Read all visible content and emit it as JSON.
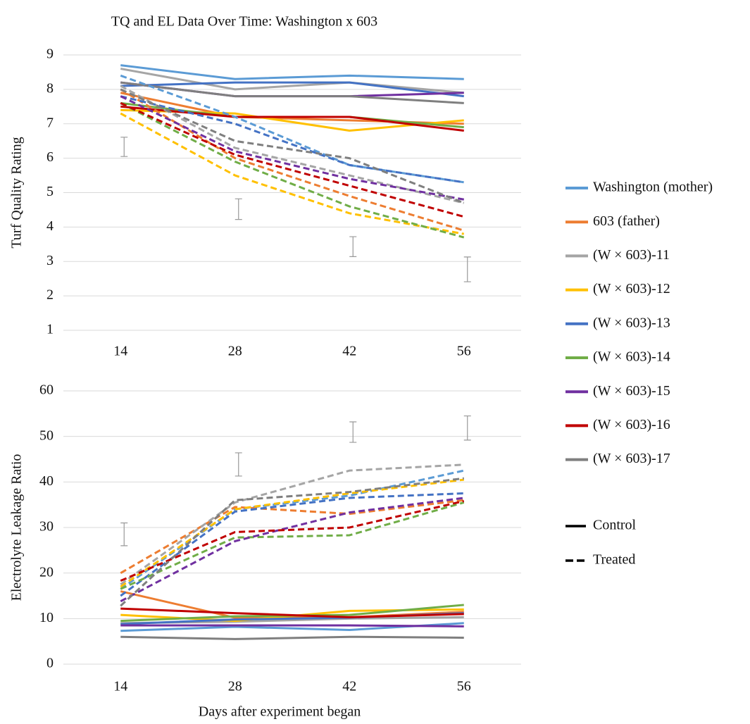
{
  "title": "TQ and EL Data Over Time:  Washington x 603",
  "x_label": "Days after experiment began",
  "legend": {
    "entries": [
      {
        "name": "Washington (mother)",
        "color": "#5b9bd5"
      },
      {
        "name": "603 (father)",
        "color": "#ed7d31"
      },
      {
        "name": "(W × 603)-11",
        "color": "#a5a5a5"
      },
      {
        "name": "(W × 603)-12",
        "color": "#ffc000"
      },
      {
        "name": "(W × 603)-13",
        "color": "#4472c4"
      },
      {
        "name": "(W × 603)-14",
        "color": "#70ad47"
      },
      {
        "name": "(W × 603)-15",
        "color": "#7030a0"
      },
      {
        "name": "(W × 603)-16",
        "color": "#c00000"
      },
      {
        "name": "(W × 603)-17",
        "color": "#7f7f7f"
      }
    ],
    "styles": [
      {
        "label": "Control",
        "dashed": false
      },
      {
        "label": "Treated",
        "dashed": true
      }
    ]
  },
  "chart_data": [
    {
      "type": "line",
      "y_label": "Turf Quality Rating",
      "categories": [
        14,
        28,
        42,
        56
      ],
      "ylim": [
        1,
        9
      ],
      "yticks": [
        1,
        2,
        3,
        4,
        5,
        6,
        7,
        8,
        9
      ],
      "grid": true,
      "series": [
        {
          "control": [
            8.7,
            8.3,
            8.4,
            8.3
          ],
          "treated": [
            8.4,
            7.2,
            5.8,
            5.3
          ]
        },
        {
          "control": [
            7.9,
            7.2,
            7.1,
            7.0
          ],
          "treated": [
            8.0,
            6.0,
            4.9,
            3.9
          ]
        },
        {
          "control": [
            8.6,
            8.0,
            8.2,
            7.9
          ],
          "treated": [
            8.1,
            6.3,
            5.5,
            4.7
          ]
        },
        {
          "control": [
            7.4,
            7.3,
            6.8,
            7.1
          ],
          "treated": [
            7.3,
            5.5,
            4.4,
            3.8
          ]
        },
        {
          "control": [
            8.1,
            8.2,
            8.2,
            7.8
          ],
          "treated": [
            7.8,
            7.0,
            5.8,
            5.3
          ]
        },
        {
          "control": [
            7.6,
            7.2,
            7.2,
            6.9
          ],
          "treated": [
            7.6,
            5.9,
            4.6,
            3.7
          ]
        },
        {
          "control": [
            8.2,
            7.8,
            7.8,
            7.9
          ],
          "treated": [
            7.8,
            6.2,
            5.4,
            4.8
          ]
        },
        {
          "control": [
            7.5,
            7.2,
            7.2,
            6.8
          ],
          "treated": [
            7.6,
            6.1,
            5.2,
            4.3
          ]
        },
        {
          "control": [
            8.2,
            7.8,
            7.8,
            7.6
          ],
          "treated": [
            8.0,
            6.5,
            6.0,
            4.7
          ]
        }
      ],
      "error_bars": {
        "center": [
          6.33,
          4.52,
          3.43,
          2.77
        ],
        "error": [
          0.28,
          0.3,
          0.29,
          0.36
        ]
      }
    },
    {
      "type": "line",
      "y_label": "Electrolyte Leakage Ratio",
      "categories": [
        14,
        28,
        42,
        56
      ],
      "ylim": [
        0,
        60
      ],
      "yticks": [
        0,
        10,
        20,
        30,
        40,
        50,
        60
      ],
      "grid": true,
      "series": [
        {
          "control": [
            7.3,
            8.2,
            7.5,
            9.0
          ],
          "treated": [
            16.5,
            34.0,
            37.0,
            42.5
          ]
        },
        {
          "control": [
            16.0,
            10.2,
            10.3,
            11.5
          ],
          "treated": [
            20.0,
            34.5,
            33.0,
            36.0
          ]
        },
        {
          "control": [
            9.0,
            9.3,
            10.0,
            10.3
          ],
          "treated": [
            17.5,
            35.5,
            42.5,
            43.8
          ]
        },
        {
          "control": [
            10.8,
            9.5,
            11.7,
            12.0
          ],
          "treated": [
            17.0,
            34.0,
            37.5,
            40.5
          ]
        },
        {
          "control": [
            8.8,
            9.8,
            10.2,
            11.2
          ],
          "treated": [
            15.0,
            33.5,
            36.5,
            37.5
          ]
        },
        {
          "control": [
            9.5,
            10.5,
            10.8,
            13.0
          ],
          "treated": [
            16.5,
            27.8,
            28.3,
            35.5
          ]
        },
        {
          "control": [
            8.5,
            8.5,
            8.5,
            8.3
          ],
          "treated": [
            13.8,
            27.0,
            33.3,
            36.5
          ]
        },
        {
          "control": [
            12.2,
            11.2,
            10.3,
            11.0
          ],
          "treated": [
            18.3,
            29.0,
            30.0,
            35.8
          ]
        },
        {
          "control": [
            6.0,
            5.5,
            6.0,
            5.8
          ],
          "treated": [
            12.8,
            36.0,
            37.8,
            40.8
          ]
        }
      ],
      "error_bars": {
        "center": [
          28.5,
          43.85,
          50.95,
          51.85
        ],
        "error": [
          2.5,
          2.55,
          2.25,
          2.65
        ]
      }
    }
  ]
}
